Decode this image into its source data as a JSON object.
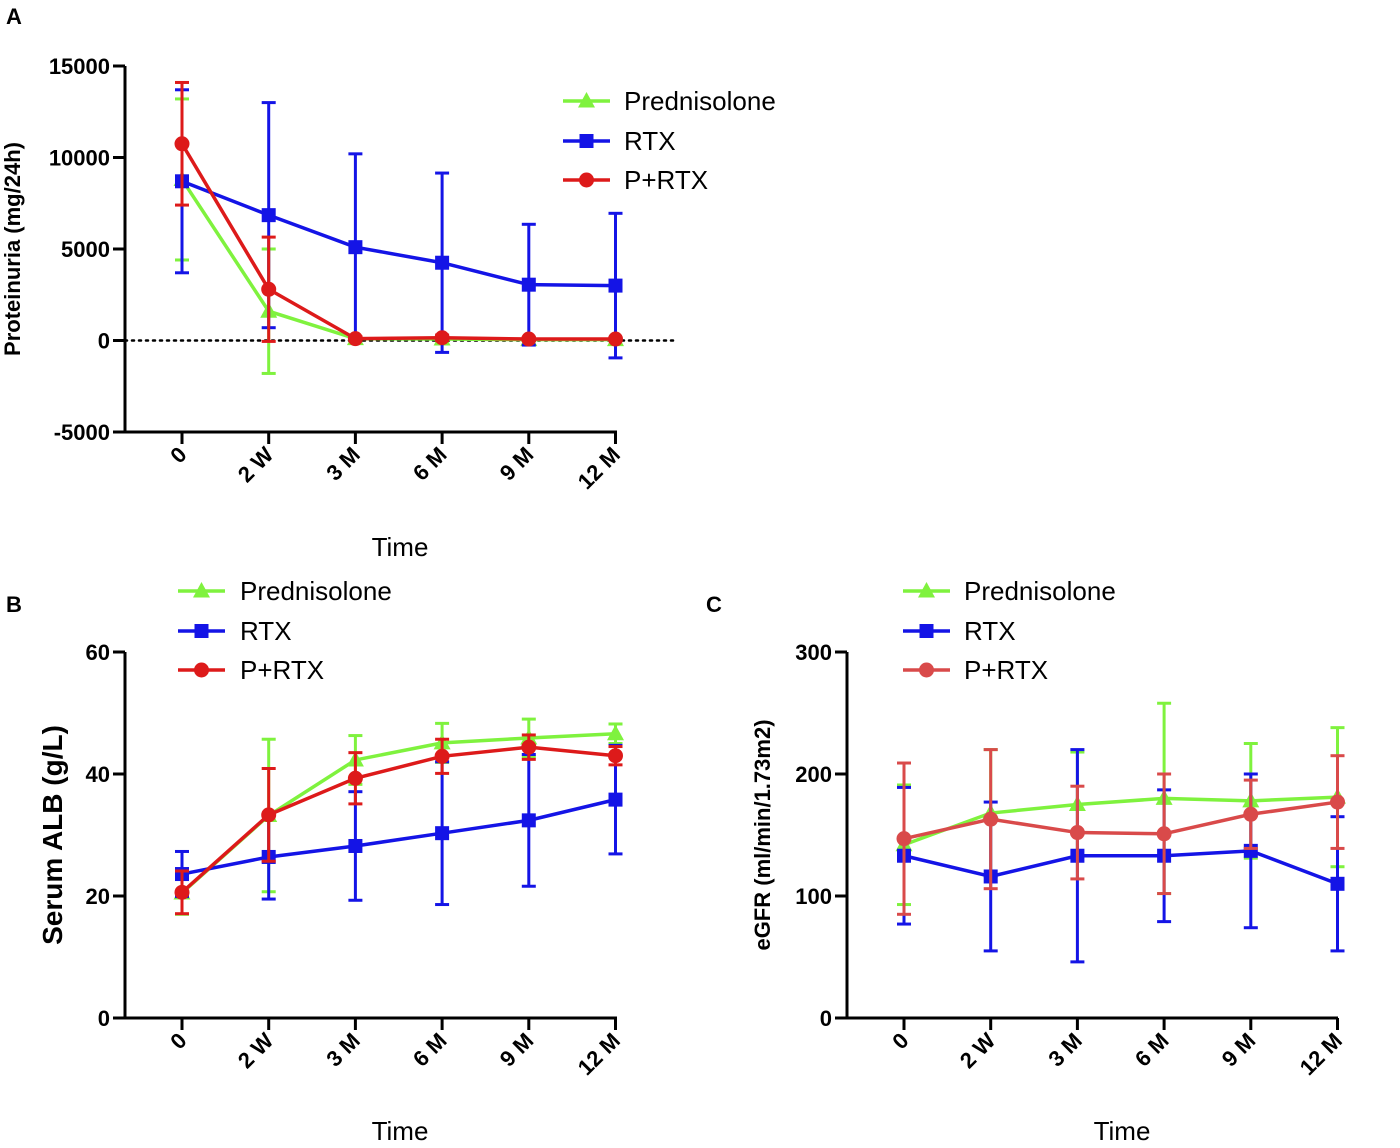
{
  "chart_data": [
    {
      "panel": "A",
      "type": "line",
      "ylabel": "Proteinuria (mg/24h)",
      "xlabel": "Time",
      "categories": [
        "0",
        "2 W",
        "3 M",
        "6 M",
        "9 M",
        "12 M"
      ],
      "ylim": [
        -5000,
        15000
      ],
      "yticks": [
        -5000,
        0,
        5000,
        10000,
        15000
      ],
      "reference_line": 0,
      "legend_position": "top-right",
      "series": [
        {
          "name": "Prednisolone",
          "marker": "triangle",
          "color": "#7FF23E",
          "values": [
            8800,
            1600,
            100,
            80,
            50,
            50
          ],
          "err": [
            4400,
            3400,
            100,
            100,
            50,
            50
          ]
        },
        {
          "name": "RTX",
          "marker": "square",
          "color": "#1414E6",
          "values": [
            8700,
            6850,
            5100,
            4250,
            3050,
            3000
          ],
          "err": [
            5000,
            6150,
            5100,
            4900,
            3300,
            3950
          ]
        },
        {
          "name": "P+RTX",
          "marker": "circle",
          "color": "#DD1A1A",
          "values": [
            10750,
            2800,
            100,
            150,
            80,
            80
          ],
          "err": [
            3350,
            2850,
            100,
            150,
            80,
            80
          ]
        }
      ]
    },
    {
      "panel": "B",
      "type": "line",
      "ylabel": "Serum ALB (g/L)",
      "xlabel": "Time",
      "categories": [
        "0",
        "2 W",
        "3 M",
        "6 M",
        "9 M",
        "12 M"
      ],
      "ylim": [
        0,
        60
      ],
      "yticks": [
        0,
        20,
        40,
        60
      ],
      "legend_position": "top",
      "series": [
        {
          "name": "Prednisolone",
          "marker": "triangle",
          "color": "#7FF23E",
          "values": [
            20.5,
            33.2,
            42.3,
            45.1,
            45.9,
            46.6
          ],
          "err": [
            3.5,
            12.5,
            4,
            3.2,
            3.1,
            1.6
          ]
        },
        {
          "name": "RTX",
          "marker": "square",
          "color": "#1414E6",
          "values": [
            23.6,
            26.4,
            28.2,
            30.3,
            32.4,
            35.8
          ],
          "err": [
            3.7,
            6.9,
            8.9,
            11.7,
            10.8,
            8.9
          ]
        },
        {
          "name": "P+RTX",
          "marker": "circle",
          "color": "#DD1A1A",
          "values": [
            20.6,
            33.3,
            39.3,
            42.9,
            44.4,
            43.0
          ],
          "err": [
            3.5,
            7.6,
            4.2,
            2.8,
            2.0,
            1.5
          ]
        }
      ]
    },
    {
      "panel": "C",
      "type": "line",
      "ylabel": "eGFR (ml/min/1.73m2)",
      "xlabel": "Time",
      "categories": [
        "0",
        "2 W",
        "3 M",
        "6 M",
        "9 M",
        "12 M"
      ],
      "ylim": [
        0,
        300
      ],
      "yticks": [
        0,
        100,
        200,
        300
      ],
      "legend_position": "top",
      "series": [
        {
          "name": "Prednisolone",
          "marker": "triangle",
          "color": "#7FF23E",
          "values": [
            142,
            168,
            175,
            180,
            178,
            181
          ],
          "err": [
            49,
            52,
            43,
            78,
            47,
            57
          ]
        },
        {
          "name": "RTX",
          "marker": "square",
          "color": "#1414E6",
          "values": [
            133,
            116,
            133,
            133,
            137,
            110
          ],
          "err": [
            56,
            61,
            87,
            54,
            63,
            55
          ]
        },
        {
          "name": "P+RTX",
          "marker": "circle",
          "color": "#D94A4A",
          "values": [
            147,
            163,
            152,
            151,
            167,
            177
          ],
          "err": [
            62,
            57,
            38,
            49,
            28,
            38
          ]
        }
      ]
    }
  ]
}
